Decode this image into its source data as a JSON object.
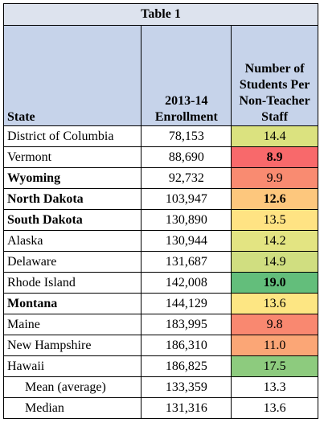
{
  "table": {
    "title": "Table 1",
    "header": [
      "State",
      "2013-14 Enrollment",
      "Number of Students Per Non-Teacher Staff"
    ],
    "rows": [
      {
        "state": "District of Columbia",
        "enrollment": "78,153",
        "ratio": "14.4",
        "fill": "#dbe27f",
        "bold_state": false,
        "bold_ratio": false
      },
      {
        "state": "Vermont",
        "enrollment": "88,690",
        "ratio": "8.9",
        "fill": "#f8696b",
        "bold_state": false,
        "bold_ratio": true
      },
      {
        "state": "Wyoming",
        "enrollment": "92,732",
        "ratio": "9.9",
        "fill": "#f98b71",
        "bold_state": true,
        "bold_ratio": false
      },
      {
        "state": "North Dakota",
        "enrollment": "103,947",
        "ratio": "12.6",
        "fill": "#fdc77d",
        "bold_state": true,
        "bold_ratio": true
      },
      {
        "state": "South Dakota",
        "enrollment": "130,890",
        "ratio": "13.5",
        "fill": "#ffe383",
        "bold_state": true,
        "bold_ratio": false
      },
      {
        "state": "Alaska",
        "enrollment": "130,944",
        "ratio": "14.2",
        "fill": "#e3e482",
        "bold_state": false,
        "bold_ratio": false
      },
      {
        "state": "Delaware",
        "enrollment": "131,687",
        "ratio": "14.9",
        "fill": "#d0de80",
        "bold_state": false,
        "bold_ratio": false
      },
      {
        "state": "Rhode Island",
        "enrollment": "142,008",
        "ratio": "19.0",
        "fill": "#63be7b",
        "bold_state": false,
        "bold_ratio": true
      },
      {
        "state": "Montana",
        "enrollment": "144,129",
        "ratio": "13.6",
        "fill": "#fde683",
        "bold_state": true,
        "bold_ratio": false
      },
      {
        "state": "Maine",
        "enrollment": "183,995",
        "ratio": "9.8",
        "fill": "#f98870",
        "bold_state": false,
        "bold_ratio": false
      },
      {
        "state": "New Hampshire",
        "enrollment": "186,310",
        "ratio": "11.0",
        "fill": "#fba676",
        "bold_state": false,
        "bold_ratio": false
      },
      {
        "state": "Hawaii",
        "enrollment": "186,825",
        "ratio": "17.5",
        "fill": "#8dcb7e",
        "bold_state": false,
        "bold_ratio": false
      }
    ],
    "summary": [
      {
        "label": "Mean (average)",
        "enrollment": "133,359",
        "ratio": "13.3"
      },
      {
        "label": "Median",
        "enrollment": "131,316",
        "ratio": "13.6"
      }
    ]
  }
}
